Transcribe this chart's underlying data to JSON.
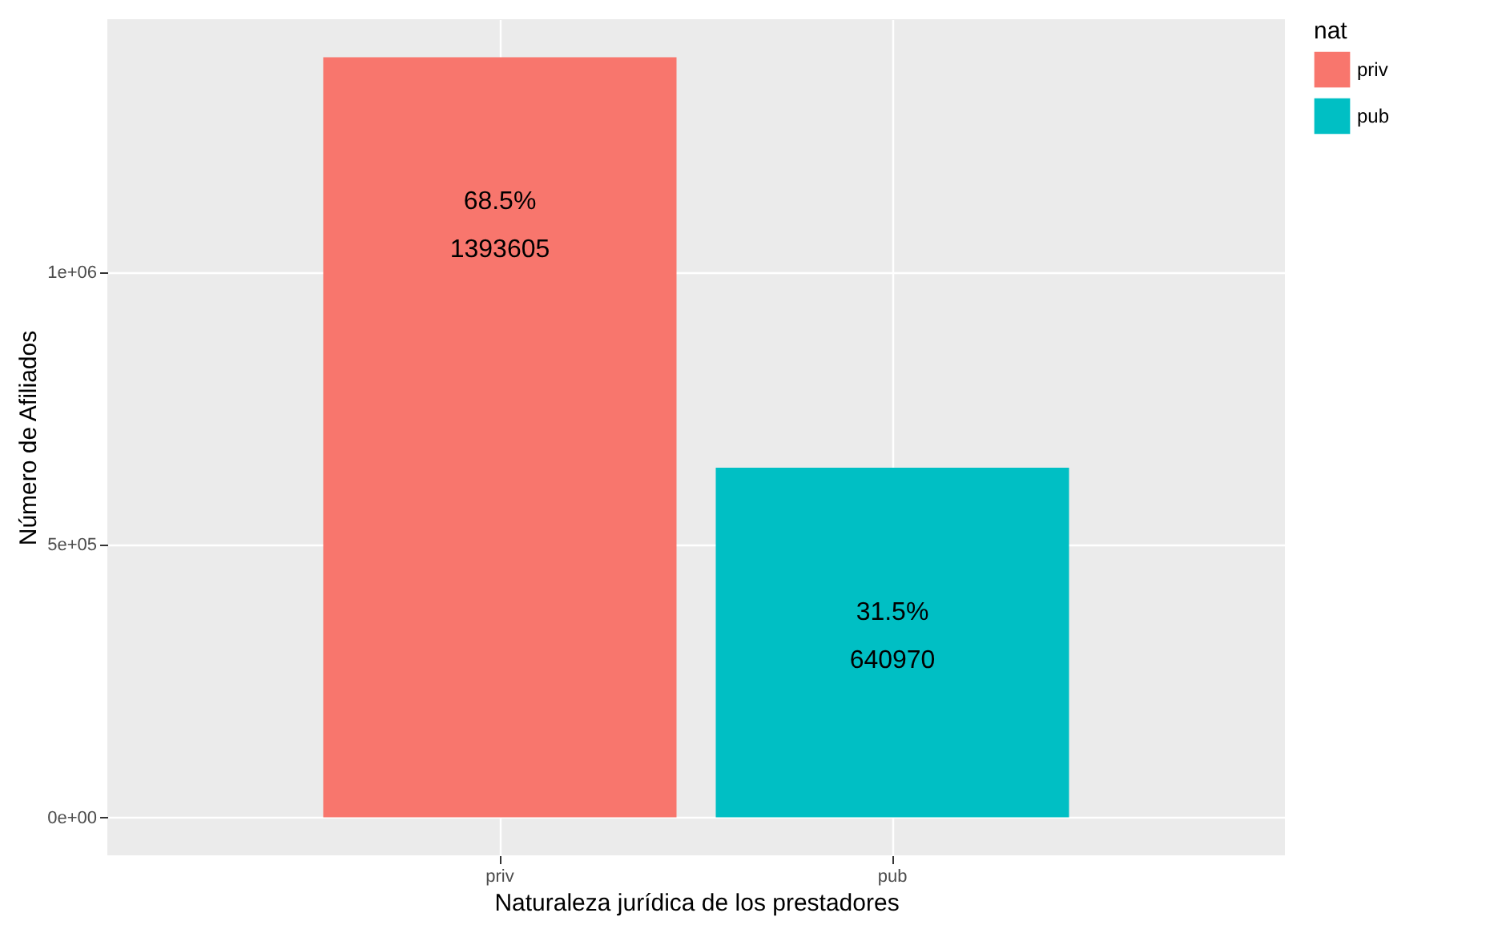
{
  "chart_data": {
    "type": "bar",
    "xlabel": "Naturaleza jurídica de los prestadores",
    "ylabel": "Número de Afiliados",
    "legend_title": "nat",
    "categories": [
      "priv",
      "pub"
    ],
    "series": [
      {
        "name": "priv",
        "color": "#f8766d",
        "values": [
          1393605,
          null
        ],
        "value_labels": [
          "68.5%\n1393605",
          null
        ]
      },
      {
        "name": "pub",
        "color": "#00bfc4",
        "values": [
          null,
          640970
        ],
        "value_labels": [
          null,
          "31.5%\n640970"
        ]
      }
    ],
    "ylim": [
      -69680,
      1463285
    ],
    "yticks": [
      {
        "value": 0,
        "label": "0e+00"
      },
      {
        "value": 500000,
        "label": "5e+05"
      },
      {
        "value": 1000000,
        "label": "1e+06"
      }
    ],
    "grid": true,
    "legend": "right"
  }
}
